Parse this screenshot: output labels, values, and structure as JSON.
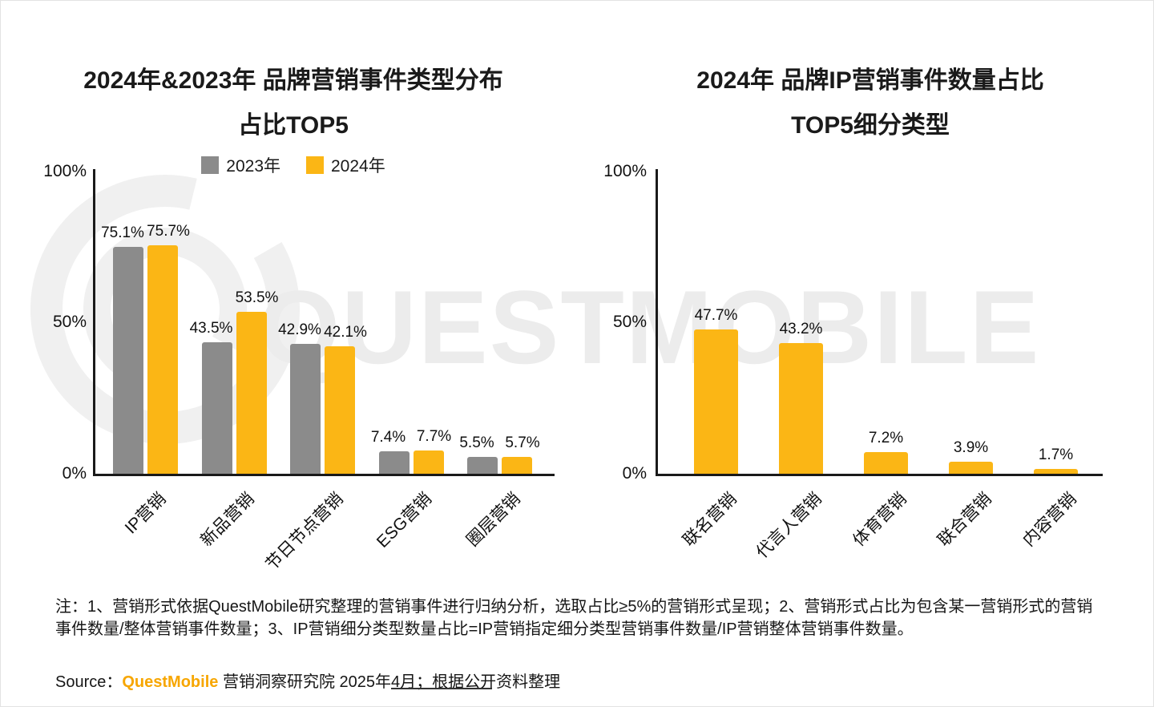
{
  "colors": {
    "yellow": "#FBB615",
    "gray": "#8B8B8B",
    "brand_orange": "#F7A600",
    "axis": "#1A1A1A",
    "watermark": "#ECECEC"
  },
  "watermark": {
    "text": "QUESTMOBILE"
  },
  "chart_data": [
    {
      "type": "bar",
      "title_line1": "2024年&2023年 品牌营销事件类型分布",
      "title_line2": "占比TOP5",
      "categories": [
        "IP营销",
        "新品营销",
        "节日节点营销",
        "ESG营销",
        "圈层营销"
      ],
      "series": [
        {
          "name": "2023年",
          "color_key": "gray",
          "values": [
            75.1,
            43.5,
            42.9,
            7.4,
            5.5
          ]
        },
        {
          "name": "2024年",
          "color_key": "yellow",
          "values": [
            75.7,
            53.5,
            42.1,
            7.7,
            5.7
          ]
        }
      ],
      "value_suffix": "%",
      "yticks": [
        "100%",
        "50%",
        "0%"
      ],
      "ylim": [
        0,
        100
      ],
      "grid": false,
      "legend_position": "top"
    },
    {
      "type": "bar",
      "title_line1": "2024年 品牌IP营销事件数量占比",
      "title_line2": "TOP5细分类型",
      "categories": [
        "联名营销",
        "代言人营销",
        "体育营销",
        "联合营销",
        "内容营销"
      ],
      "series": [
        {
          "name": "2024年",
          "color_key": "yellow",
          "values": [
            47.7,
            43.2,
            7.2,
            3.9,
            1.7
          ]
        }
      ],
      "value_suffix": "%",
      "yticks": [
        "100%",
        "50%",
        "0%"
      ],
      "ylim": [
        0,
        100
      ],
      "grid": false,
      "legend_position": "none"
    }
  ],
  "footer": {
    "note": "注：1、营销形式依据QuestMobile研究整理的营销事件进行归纳分析，选取占比≥5%的营销形式呈现；2、营销形式占比为包含某一营销形式的营销事件数量/整体营销事件数量；3、IP营销细分类型数量占比=IP营销指定细分类型营销事件数量/IP营销整体营销事件数量。",
    "source_prefix": "Source：",
    "source_brand": "QuestMobile",
    "source_suffix": " 营销洞察研究院 2025年4月；根据公开资料整理"
  }
}
